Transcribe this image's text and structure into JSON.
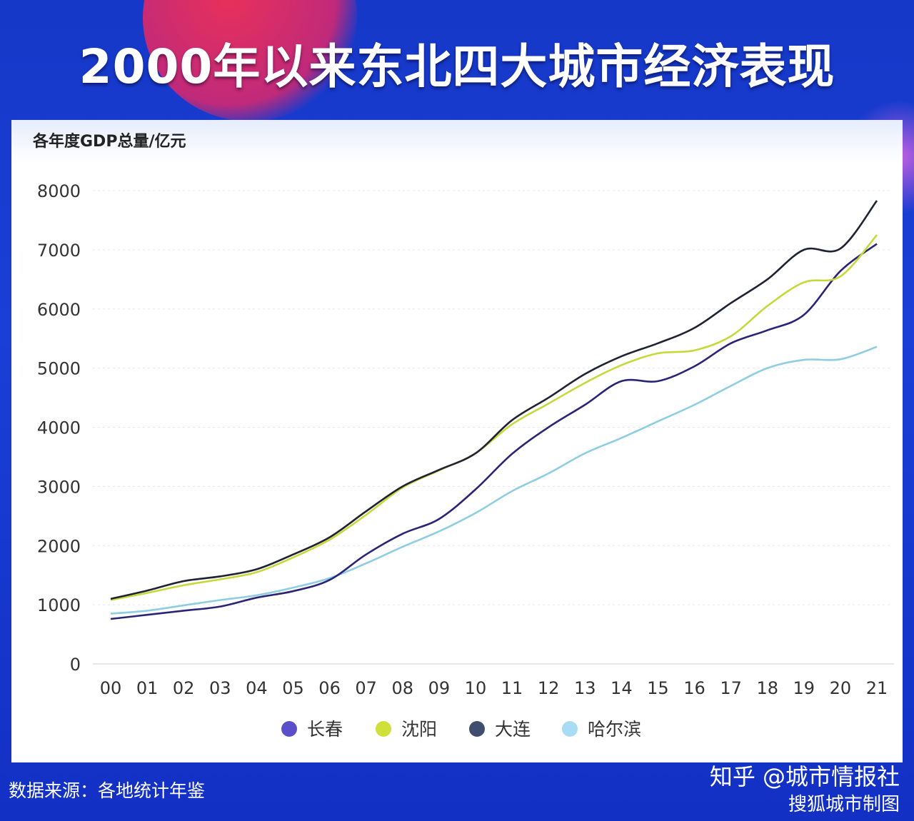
{
  "title": "2000年以来东北四大城市经济表现",
  "chart_data": {
    "type": "line",
    "title": "2000年以来东北四大城市经济表现",
    "ylabel": "各年度GDP总量/亿元",
    "xlabel": "",
    "categories": [
      "00",
      "01",
      "02",
      "03",
      "04",
      "05",
      "06",
      "07",
      "08",
      "09",
      "10",
      "11",
      "12",
      "13",
      "14",
      "15",
      "16",
      "17",
      "18",
      "19",
      "20",
      "21"
    ],
    "ylim": [
      0,
      8000
    ],
    "yticks": [
      "0",
      "1000",
      "2000",
      "3000",
      "4000",
      "5000",
      "6000",
      "7000",
      "8000"
    ],
    "grid": true,
    "legend_position": "bottom",
    "series": [
      {
        "name": "长春",
        "color": "#2a2476",
        "legend_color": "#5a4fc8",
        "values": [
          760,
          830,
          900,
          970,
          1120,
          1230,
          1420,
          1850,
          2200,
          2450,
          2950,
          3550,
          4000,
          4380,
          4780,
          4780,
          5030,
          5420,
          5640,
          5900,
          6640,
          7100
        ]
      },
      {
        "name": "沈阳",
        "color": "#c6d83a",
        "legend_color": "#cfe03a",
        "values": [
          1080,
          1200,
          1330,
          1430,
          1550,
          1800,
          2100,
          2520,
          2980,
          3270,
          3560,
          4050,
          4400,
          4750,
          5050,
          5250,
          5300,
          5540,
          6050,
          6450,
          6550,
          7250
        ]
      },
      {
        "name": "大连",
        "color": "#1e2232",
        "legend_color": "#3f4d6e",
        "values": [
          1100,
          1240,
          1400,
          1480,
          1600,
          1850,
          2140,
          2580,
          3000,
          3280,
          3560,
          4120,
          4500,
          4900,
          5200,
          5420,
          5680,
          6100,
          6500,
          7000,
          7020,
          7830
        ]
      },
      {
        "name": "哈尔滨",
        "color": "#8fcde0",
        "legend_color": "#a8dcf4",
        "values": [
          850,
          900,
          990,
          1080,
          1160,
          1290,
          1450,
          1700,
          1980,
          2240,
          2550,
          2920,
          3220,
          3560,
          3820,
          4100,
          4380,
          4700,
          5000,
          5140,
          5150,
          5360
        ]
      }
    ]
  },
  "footer": {
    "source": "数据来源：各地统计年鉴",
    "watermark": "知乎 @城市情报社",
    "credit": "搜狐城市制图"
  }
}
